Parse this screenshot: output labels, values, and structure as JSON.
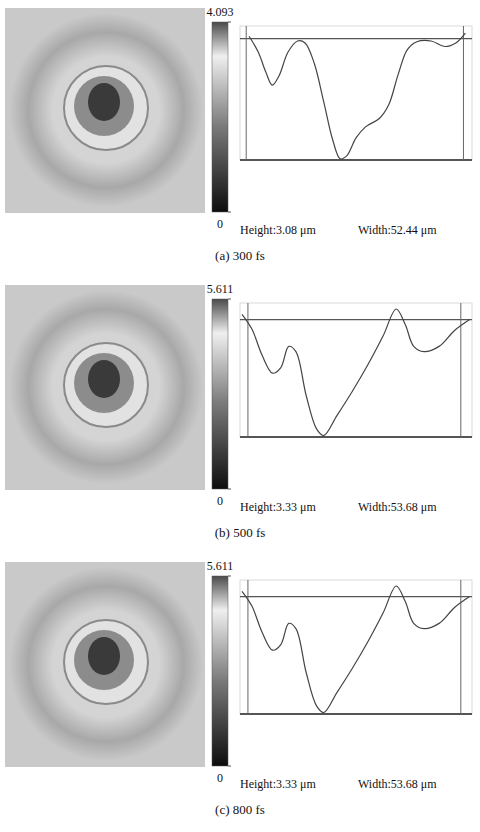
{
  "chart_data": [
    {
      "type": "line",
      "title": "(a) 300 fs",
      "annotations": [
        "Height:3.08 μm",
        "Width:52.44 μm"
      ],
      "x": [
        0.7,
        2.9,
        4.7,
        6.3,
        7.9,
        10.1,
        12.4,
        14.2,
        16.4,
        18.7,
        20.9,
        22.7,
        24.3,
        26.5,
        28.8,
        32.2,
        34.4,
        36.7,
        38.9,
        41.2,
        44.6,
        48.0,
        50.6,
        52.9
      ],
      "values": [
        3.14,
        2.74,
        2.24,
        1.9,
        2.13,
        2.74,
        3.02,
        2.97,
        2.46,
        1.48,
        0.5,
        0.03,
        0.11,
        0.56,
        0.84,
        1.06,
        1.4,
        2.18,
        2.8,
        3.0,
        3.02,
        2.88,
        2.97,
        3.22
      ],
      "xlim": [
        -1.5,
        54.5
      ],
      "ylim": [
        0,
        3.4
      ],
      "xticks": [
        0,
        52.44
      ],
      "yticks": [
        0,
        3.08
      ],
      "grid": true,
      "tick_labels": false,
      "color": "#444444",
      "colorbar": {
        "range": [
          0,
          4.093
        ],
        "ticks": [
          0,
          4.093
        ]
      }
    },
    {
      "type": "line",
      "title": "(b) 500 fs",
      "annotations": [
        "Height:3.33 μm",
        "Width:53.68 μm"
      ],
      "x": [
        -1.5,
        1.0,
        3.6,
        6.2,
        8.3,
        10.3,
        12.1,
        14.7,
        17.3,
        19.1,
        22.4,
        26.3,
        30.2,
        34.1,
        37.4,
        39.7,
        41.8,
        44.4,
        48.2,
        52.1,
        55.9
      ],
      "values": [
        3.48,
        3.06,
        2.31,
        1.81,
        1.97,
        2.57,
        2.42,
        1.17,
        0.23,
        0.04,
        0.6,
        1.29,
        2.04,
        2.87,
        3.63,
        3.18,
        2.57,
        2.42,
        2.57,
        3.02,
        3.33
      ],
      "xlim": [
        -2,
        56.5
      ],
      "ylim": [
        0,
        3.8
      ],
      "xticks": [
        0,
        53.68
      ],
      "yticks": [
        0,
        3.33
      ],
      "grid": true,
      "tick_labels": false,
      "color": "#444444",
      "colorbar": {
        "range": [
          0,
          5.611
        ],
        "ticks": [
          0,
          5.611
        ]
      }
    },
    {
      "type": "line",
      "title": "(c) 800 fs",
      "annotations": [
        "Height:3.33 μm",
        "Width:53.68 μm"
      ],
      "x": [
        -1.5,
        1.0,
        3.6,
        6.2,
        8.3,
        10.3,
        12.1,
        14.7,
        17.3,
        19.1,
        22.4,
        26.3,
        30.2,
        34.1,
        37.4,
        39.7,
        41.8,
        44.4,
        48.2,
        52.1,
        55.9
      ],
      "values": [
        3.48,
        3.06,
        2.31,
        1.81,
        1.97,
        2.57,
        2.42,
        1.17,
        0.23,
        0.04,
        0.6,
        1.29,
        2.04,
        2.87,
        3.63,
        3.18,
        2.57,
        2.42,
        2.57,
        3.02,
        3.33
      ],
      "xlim": [
        -2,
        56.5
      ],
      "ylim": [
        0,
        3.8
      ],
      "xticks": [
        0,
        53.68
      ],
      "yticks": [
        0,
        3.33
      ],
      "grid": true,
      "tick_labels": false,
      "color": "#444444",
      "colorbar": {
        "range": [
          0,
          5.611
        ],
        "ticks": [
          0,
          5.611
        ]
      }
    }
  ]
}
